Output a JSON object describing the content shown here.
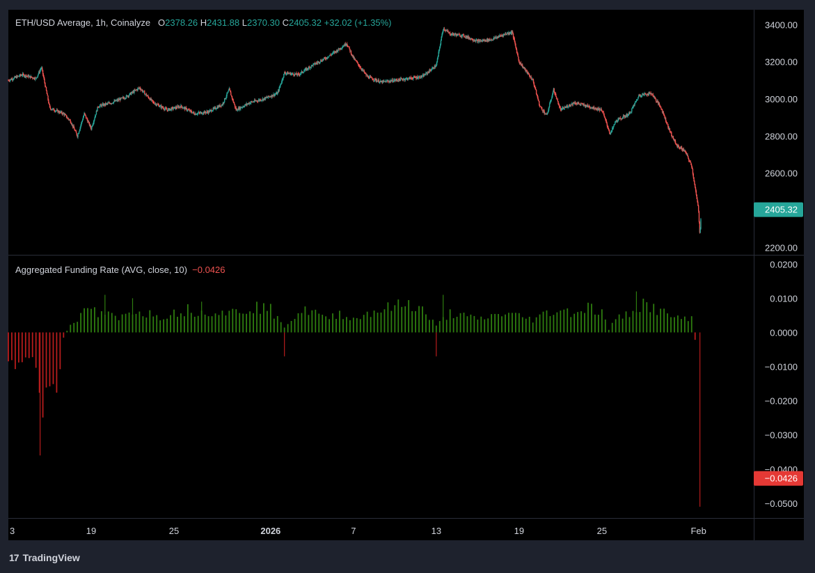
{
  "colors": {
    "background": "#000000",
    "frame": "#1e222d",
    "up": "#26a69a",
    "down": "#ef5350",
    "funding_positive": "#2e7d0f",
    "funding_negative": "#b71c1c",
    "text": "#d1d4dc",
    "grid_sep": "#2a2e39"
  },
  "price_legend": {
    "symbol": "ETH/USD Average, 1h, Coinalyze",
    "o_label": "O",
    "o_value": "2378.26",
    "h_label": "H",
    "h_value": "2431.88",
    "l_label": "L",
    "l_value": "2370.30",
    "c_label": "C",
    "c_value": "2405.32",
    "change": "+32.02 (+1.35%)"
  },
  "funding_legend": {
    "title": "Aggregated Funding Rate (AVG, close, 10)",
    "value": "−0.0426"
  },
  "brand": {
    "icon": "tradingview-logo-icon",
    "logo": "17",
    "name": "TradingView"
  },
  "chart_data": [
    {
      "type": "candlestick",
      "title": "ETH/USD Average, 1h, Coinalyze",
      "ylim": [
        2160,
        3480
      ],
      "y_ticks": [
        "3400.00",
        "3200.00",
        "3000.00",
        "2800.00",
        "2600.00",
        "2200.00"
      ],
      "y_tick_values": [
        3400,
        3200,
        3000,
        2800,
        2600,
        2200
      ],
      "last_price_label": "2405.32",
      "last_price": 2405.32,
      "x_ticks": [
        "3",
        "19",
        "25",
        "2026",
        "7",
        "13",
        "19",
        "25",
        "Feb"
      ],
      "x_tick_days": [
        13,
        19,
        25,
        32,
        38,
        44,
        50,
        56,
        63
      ],
      "x_range_days": [
        13,
        67
      ],
      "note": "x in days from Dec 1 2025",
      "path": [
        [
          13,
          3100
        ],
        [
          14,
          3130
        ],
        [
          15,
          3110
        ],
        [
          15.4,
          3170
        ],
        [
          16,
          2950
        ],
        [
          17,
          2920
        ],
        [
          17.5,
          2880
        ],
        [
          18,
          2800
        ],
        [
          18.5,
          2920
        ],
        [
          19,
          2840
        ],
        [
          19.5,
          2960
        ],
        [
          20.5,
          2980
        ],
        [
          21.5,
          3010
        ],
        [
          22.5,
          3060
        ],
        [
          23.5,
          2980
        ],
        [
          24.5,
          2940
        ],
        [
          25.5,
          2960
        ],
        [
          26.5,
          2920
        ],
        [
          27.5,
          2930
        ],
        [
          28.5,
          2970
        ],
        [
          29,
          3050
        ],
        [
          29.5,
          2940
        ],
        [
          30.5,
          2980
        ],
        [
          31.5,
          3000
        ],
        [
          32.5,
          3030
        ],
        [
          33,
          3140
        ],
        [
          34,
          3130
        ],
        [
          35,
          3180
        ],
        [
          36,
          3220
        ],
        [
          37,
          3270
        ],
        [
          37.5,
          3300
        ],
        [
          38,
          3220
        ],
        [
          39,
          3120
        ],
        [
          40,
          3090
        ],
        [
          41,
          3100
        ],
        [
          42,
          3110
        ],
        [
          43,
          3120
        ],
        [
          44,
          3180
        ],
        [
          44.5,
          3380
        ],
        [
          45,
          3350
        ],
        [
          46,
          3340
        ],
        [
          47,
          3310
        ],
        [
          48,
          3320
        ],
        [
          49,
          3350
        ],
        [
          49.5,
          3360
        ],
        [
          50,
          3200
        ],
        [
          51,
          3100
        ],
        [
          51.5,
          2960
        ],
        [
          52,
          2910
        ],
        [
          52.5,
          3050
        ],
        [
          53,
          2940
        ],
        [
          54,
          2980
        ],
        [
          55,
          2960
        ],
        [
          56,
          2940
        ],
        [
          56.6,
          2810
        ],
        [
          57,
          2880
        ],
        [
          58,
          2920
        ],
        [
          58.7,
          3020
        ],
        [
          59.6,
          3030
        ],
        [
          60.3,
          2950
        ],
        [
          60.9,
          2830
        ],
        [
          61.4,
          2750
        ],
        [
          62,
          2720
        ],
        [
          62.5,
          2640
        ],
        [
          63,
          2400
        ],
        [
          63.1,
          2260
        ],
        [
          63.2,
          2405
        ]
      ],
      "last_candle": {
        "open": 2378.26,
        "high": 2431.88,
        "low": 2370.3,
        "close": 2405.32
      }
    },
    {
      "type": "bar",
      "title": "Aggregated Funding Rate (AVG, close, 10)",
      "ylim": [
        -0.0543,
        0.0225
      ],
      "y_ticks": [
        "0.0200",
        "0.0100",
        "0.0000",
        "−0.0100",
        "−0.0200",
        "−0.0300",
        "−0.0400",
        "−0.0500"
      ],
      "y_tick_values": [
        0.02,
        0.01,
        0,
        -0.01,
        -0.02,
        -0.03,
        -0.04,
        -0.05
      ],
      "last_value_label": "−0.0426",
      "last_value": -0.0426,
      "envelope": [
        [
          13,
          -0.012
        ],
        [
          14,
          -0.008
        ],
        [
          15,
          -0.01
        ],
        [
          15.5,
          -0.026
        ],
        [
          16,
          -0.014
        ],
        [
          16.5,
          -0.02
        ],
        [
          17,
          -0.002
        ],
        [
          17.5,
          0.003
        ],
        [
          18,
          0.004
        ],
        [
          18.5,
          0.006
        ],
        [
          19,
          0.008
        ],
        [
          19.5,
          0.005
        ],
        [
          20,
          0.006
        ],
        [
          21,
          0.004
        ],
        [
          22,
          0.007
        ],
        [
          23,
          0.006
        ],
        [
          24,
          0.005
        ],
        [
          25,
          0.006
        ],
        [
          26,
          0.007
        ],
        [
          27,
          0.006
        ],
        [
          28,
          0.007
        ],
        [
          29,
          0.006
        ],
        [
          30,
          0.007
        ],
        [
          31,
          0.008
        ],
        [
          32,
          0.007
        ],
        [
          32.5,
          0.004
        ],
        [
          33,
          0.002
        ],
        [
          34,
          0.006
        ],
        [
          35,
          0.007
        ],
        [
          36,
          0.004
        ],
        [
          37,
          0.006
        ],
        [
          38,
          0.004
        ],
        [
          39,
          0.006
        ],
        [
          40,
          0.007
        ],
        [
          41,
          0.008
        ],
        [
          42,
          0.009
        ],
        [
          43,
          0.007
        ],
        [
          44,
          0.002
        ],
        [
          45,
          0.006
        ],
        [
          46,
          0.005
        ],
        [
          47,
          0.004
        ],
        [
          48,
          0.005
        ],
        [
          49,
          0.006
        ],
        [
          50,
          0.005
        ],
        [
          51,
          0.004
        ],
        [
          52,
          0.006
        ],
        [
          53,
          0.007
        ],
        [
          54,
          0.006
        ],
        [
          55,
          0.008
        ],
        [
          56,
          0.006
        ],
        [
          56.5,
          0.001
        ],
        [
          57,
          0.004
        ],
        [
          58,
          0.006
        ],
        [
          58.5,
          0.008
        ],
        [
          59,
          0.009
        ],
        [
          60,
          0.007
        ],
        [
          61,
          0.005
        ],
        [
          62,
          0.004
        ],
        [
          62.7,
          0.006
        ],
        [
          63,
          -0.0426
        ]
      ],
      "spikes": [
        [
          15.3,
          -0.036
        ],
        [
          20,
          0.011
        ],
        [
          22,
          0.01
        ],
        [
          27,
          0.009
        ],
        [
          33,
          -0.007
        ],
        [
          44,
          -0.007
        ],
        [
          44.5,
          0.011
        ],
        [
          58.5,
          0.012
        ],
        [
          63.1,
          -0.051
        ]
      ]
    }
  ]
}
